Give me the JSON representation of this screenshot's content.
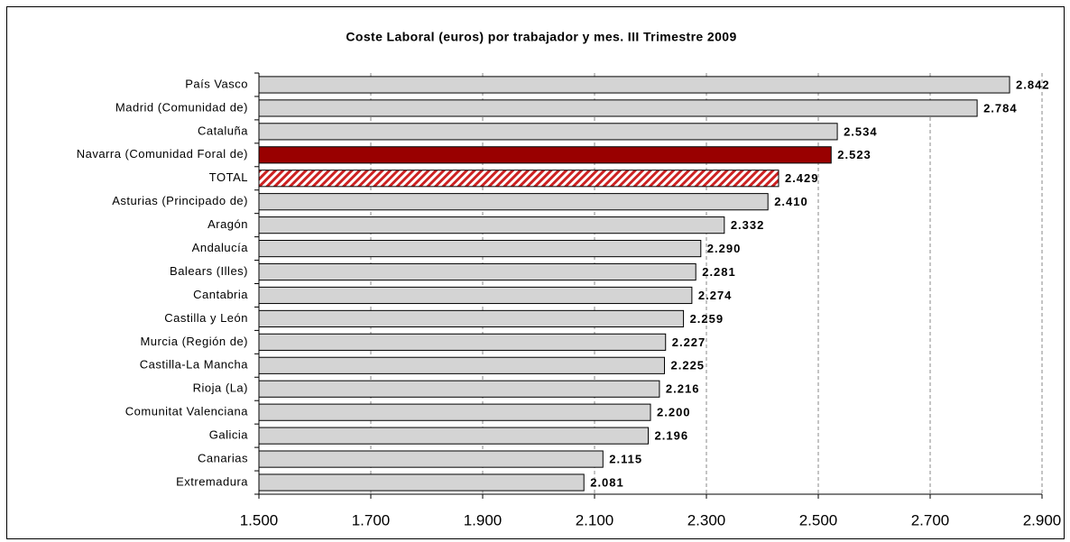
{
  "chart_data": {
    "type": "hbar",
    "title": "Coste Laboral (euros) por trabajador y mes. III Trimestre 2009",
    "categories": [
      "País Vasco",
      "Madrid (Comunidad de)",
      "Cataluña",
      "Navarra (Comunidad Foral de)",
      "TOTAL",
      "Asturias (Principado de)",
      "Aragón",
      "Andalucía",
      "Balears (Illes)",
      "Cantabria",
      "Castilla y León",
      "Murcia (Región de)",
      "Castilla-La Mancha",
      "Rioja (La)",
      "Comunitat Valenciana",
      "Galicia",
      "Canarias",
      "Extremadura"
    ],
    "values": [
      2842,
      2784,
      2534,
      2523,
      2429,
      2410,
      2332,
      2290,
      2281,
      2274,
      2259,
      2227,
      2225,
      2216,
      2200,
      2196,
      2115,
      2081
    ],
    "value_labels": [
      "2.842",
      "2.784",
      "2.534",
      "2.523",
      "2.429",
      "2.410",
      "2.332",
      "2.290",
      "2.281",
      "2.274",
      "2.259",
      "2.227",
      "2.225",
      "2.216",
      "2.200",
      "2.196",
      "2.115",
      "2.081"
    ],
    "colors": [
      "#d4d4d4",
      "#d4d4d4",
      "#d4d4d4",
      "#990000",
      "#cc2222",
      "#d4d4d4",
      "#d4d4d4",
      "#d4d4d4",
      "#d4d4d4",
      "#d4d4d4",
      "#d4d4d4",
      "#d4d4d4",
      "#d4d4d4",
      "#d4d4d4",
      "#d4d4d4",
      "#d4d4d4",
      "#d4d4d4",
      "#d4d4d4"
    ],
    "hatch": [
      4
    ],
    "xlim": [
      1500,
      2900
    ],
    "xticks": [
      {
        "value": 1500,
        "label": "1.500"
      },
      {
        "value": 1700,
        "label": "1.700"
      },
      {
        "value": 1900,
        "label": "1.900"
      },
      {
        "value": 2100,
        "label": "2.100"
      },
      {
        "value": 2300,
        "label": "2.300"
      },
      {
        "value": 2500,
        "label": "2.500"
      },
      {
        "value": 2700,
        "label": "2.700"
      },
      {
        "value": 2900,
        "label": "2.900"
      }
    ],
    "grid": true
  }
}
